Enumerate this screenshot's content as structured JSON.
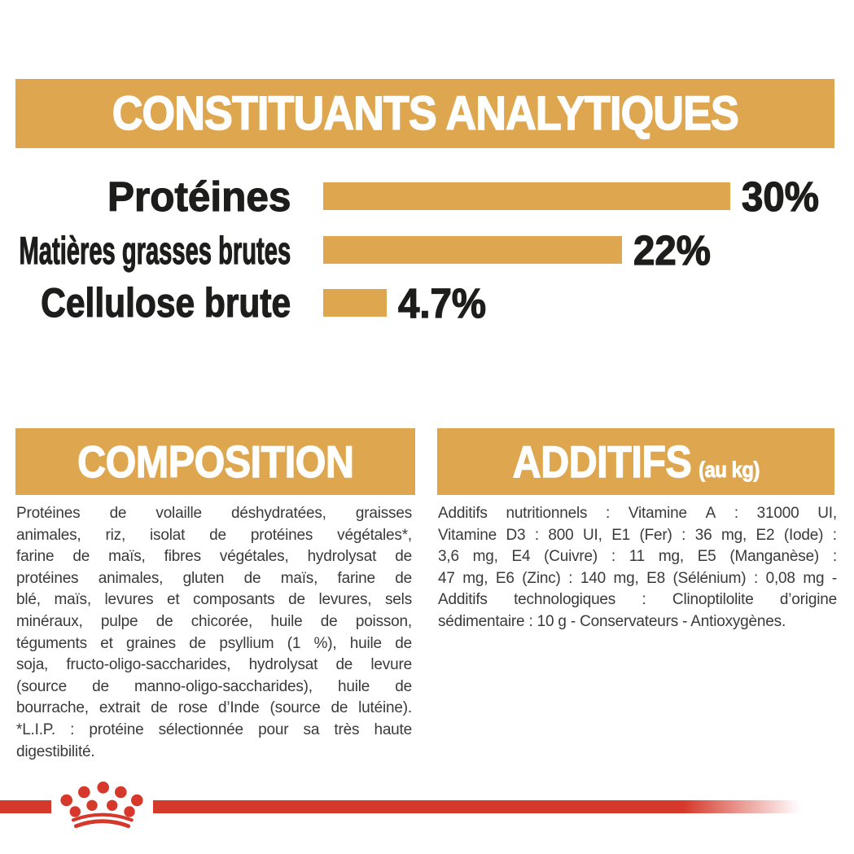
{
  "header": {
    "title": "CONSTITUANTS ANALYTIQUES"
  },
  "chart_data": {
    "type": "bar",
    "orientation": "horizontal",
    "title": "CONSTITUANTS ANALYTIQUES",
    "unit": "%",
    "categories": [
      "Protéines",
      "Matières grasses brutes",
      "Cellulose brute"
    ],
    "values": [
      30,
      22,
      4.7
    ],
    "value_labels": [
      "30%",
      "22%",
      "4.7%"
    ],
    "xlim": [
      0,
      30
    ],
    "grid": false,
    "bar_color": "#DEA64E",
    "label_color": "#1D1D1B"
  },
  "sections": {
    "composition": {
      "title": "COMPOSITION",
      "lines": [
        "Protéines de volaille déshydratées, graisses",
        "animales, riz, isolat de protéines végétales*,",
        "farine de maïs, fibres végétales, hydrolysat de",
        "protéines animales, gluten de maïs, farine de",
        "blé, maïs, levures et composants de levures, sels",
        "minéraux, pulpe de chicorée, huile de poisson,",
        "téguments et graines de psyllium (1 %), huile de",
        "soja, fructo-oligo-saccharides, hydrolysat de levure",
        "(source de manno-oligo-saccharides), huile de",
        "bourrache, extrait de rose d’Inde (source de lutéine).",
        "*L.I.P. : protéine sélectionnée pour sa très haute",
        "digestibilité."
      ]
    },
    "additifs": {
      "title": "ADDITIFS",
      "subtitle": "(au kg)",
      "lines": [
        "Additifs nutritionnels : Vitamine A : 31000 UI,",
        "Vitamine D3 : 800 UI, E1 (Fer) : 36 mg, E2 (Iode) :",
        "3,6 mg, E4 (Cuivre) : 11 mg, E5 (Manganèse) :",
        "47 mg, E6 (Zinc) : 140 mg, E8 (Sélénium) : 0,08 mg -",
        "Additifs technologiques : Clinoptilolite d’origine",
        "sédimentaire : 10 g - Conservateurs - Antioxygènes."
      ]
    }
  },
  "footer": {
    "logo": "royal-canin-crown-logo"
  },
  "colors": {
    "gold": "#DEA64E",
    "red": "#D6392B",
    "heading_text": "#FFFFFF",
    "label_text": "#1D1D1B",
    "body_text": "#3A3A39",
    "background": "#FFFFFF"
  }
}
